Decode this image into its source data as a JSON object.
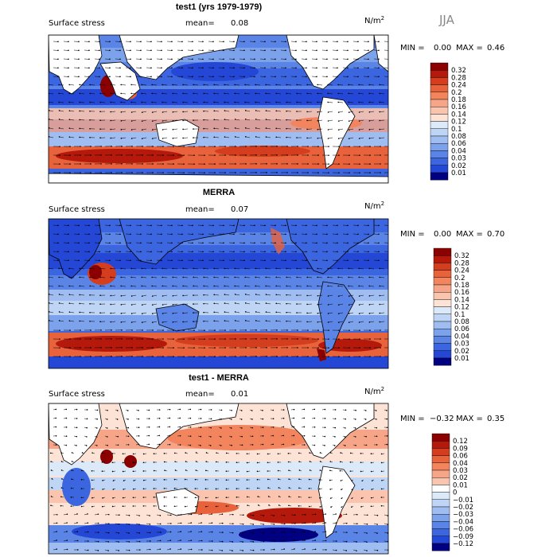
{
  "figure": {
    "season": "JJA"
  },
  "panels": [
    {
      "title": "test1 (yrs 1979-1979)",
      "variable": "Surface stress",
      "mean_label": "mean=",
      "mean": "0.08",
      "units": "N/m",
      "units_sup": "2",
      "min_label": "MIN =",
      "min": "0.00",
      "max_label": "MAX =",
      "max": "0.46",
      "levels": [
        "0.32",
        "0.28",
        "0.24",
        "0.2",
        "0.18",
        "0.16",
        "0.14",
        "0.12",
        "0.1",
        "0.08",
        "0.06",
        "0.04",
        "0.03",
        "0.02",
        "0.01"
      ],
      "colors": [
        "#8b0000",
        "#b4190c",
        "#d43d1e",
        "#e8623c",
        "#f2845e",
        "#f7a588",
        "#fac4ae",
        "#fde3d5",
        "#dce9f8",
        "#bfd5f5",
        "#9fbdf0",
        "#7da2ec",
        "#5a84e6",
        "#3c66e0",
        "#2447d6",
        "#000080"
      ]
    },
    {
      "title": "MERRA",
      "variable": "Surface stress",
      "mean_label": "mean=",
      "mean": "0.07",
      "units": "N/m",
      "units_sup": "2",
      "min_label": "MIN =",
      "min": "0.00",
      "max_label": "MAX =",
      "max": "0.70",
      "levels": [
        "0.32",
        "0.28",
        "0.24",
        "0.2",
        "0.18",
        "0.16",
        "0.14",
        "0.12",
        "0.1",
        "0.08",
        "0.06",
        "0.04",
        "0.03",
        "0.02",
        "0.01"
      ],
      "colors": [
        "#8b0000",
        "#b4190c",
        "#d43d1e",
        "#e8623c",
        "#f2845e",
        "#f7a588",
        "#fac4ae",
        "#fde3d5",
        "#dce9f8",
        "#bfd5f5",
        "#9fbdf0",
        "#7da2ec",
        "#5a84e6",
        "#3c66e0",
        "#2447d6",
        "#000080"
      ]
    },
    {
      "title": "test1 - MERRA",
      "variable": "Surface stress",
      "mean_label": "mean=",
      "mean": "0.01",
      "units": "N/m",
      "units_sup": "2",
      "min_label": "MIN =",
      "min": "−0.32",
      "max_label": "MAX =",
      "max": "0.35",
      "levels": [
        "0.12",
        "0.09",
        "0.06",
        "0.04",
        "0.03",
        "0.02",
        "0.01",
        "0",
        "−0.01",
        "−0.02",
        "−0.03",
        "−0.04",
        "−0.06",
        "−0.09",
        "−0.12"
      ],
      "colors": [
        "#8b0000",
        "#b4190c",
        "#d43d1e",
        "#e8623c",
        "#f2845e",
        "#f7a588",
        "#fac4ae",
        "#ffffff",
        "#dce9f8",
        "#bfd5f5",
        "#9fbdf0",
        "#7da2ec",
        "#5a84e6",
        "#3c66e0",
        "#2447d6",
        "#000080"
      ]
    }
  ],
  "chart_data": [
    {
      "type": "heatmap",
      "title": "test1 (yrs 1979-1979)",
      "field": "Surface stress",
      "units": "N/m2",
      "season": "JJA",
      "mean": 0.08,
      "min": 0.0,
      "max": 0.46,
      "contour_levels": [
        0.01,
        0.02,
        0.03,
        0.04,
        0.06,
        0.08,
        0.1,
        0.12,
        0.14,
        0.16,
        0.18,
        0.2,
        0.24,
        0.28,
        0.32
      ],
      "vectors": true
    },
    {
      "type": "heatmap",
      "title": "MERRA",
      "field": "Surface stress",
      "units": "N/m2",
      "season": "JJA",
      "mean": 0.07,
      "min": 0.0,
      "max": 0.7,
      "contour_levels": [
        0.01,
        0.02,
        0.03,
        0.04,
        0.06,
        0.08,
        0.1,
        0.12,
        0.14,
        0.16,
        0.18,
        0.2,
        0.24,
        0.28,
        0.32
      ],
      "vectors": true
    },
    {
      "type": "heatmap",
      "title": "test1 - MERRA",
      "field": "Surface stress",
      "units": "N/m2",
      "season": "JJA",
      "mean": 0.01,
      "min": -0.32,
      "max": 0.35,
      "contour_levels": [
        -0.12,
        -0.09,
        -0.06,
        -0.04,
        -0.03,
        -0.02,
        -0.01,
        0,
        0.01,
        0.02,
        0.03,
        0.04,
        0.06,
        0.09,
        0.12
      ],
      "vectors": true
    }
  ]
}
